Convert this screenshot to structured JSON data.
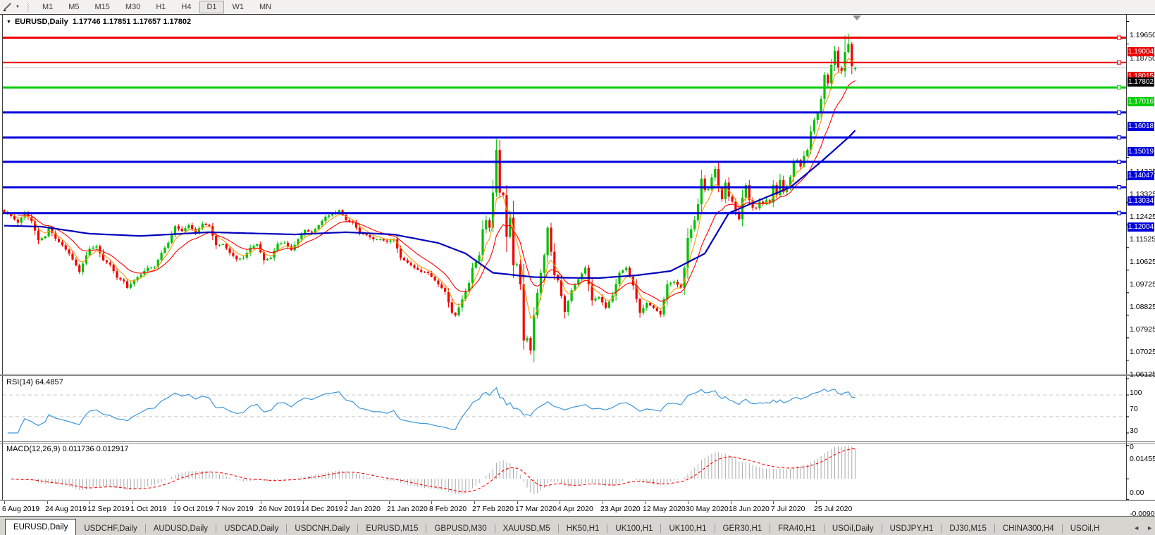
{
  "icons": {
    "caret": "▼",
    "left_arrow": "◄",
    "right_arrow": "►"
  },
  "toolbar": {
    "timeframes": [
      "M1",
      "M5",
      "M15",
      "M30",
      "H1",
      "H4",
      "D1",
      "W1",
      "MN"
    ],
    "active_timeframe": "D1"
  },
  "chart_title": {
    "symbol": "EURUSD,Daily",
    "values": "1.17746 1.17851 1.17657 1.17802",
    "open": "1.17746",
    "high": "1.17851",
    "low": "1.17657",
    "close": "1.17802"
  },
  "rsi_panel": {
    "title": "RSI(14) 64.4857"
  },
  "macd_panel": {
    "title": "MACD(12,26,9) 0.011736 0.012917"
  },
  "colors": {
    "up": "#00BE00",
    "down": "#F20000",
    "ma_fast": "#FF9900",
    "ma_mid": "#FF0000",
    "ma_slow": "#0000BB",
    "line_red": "#EE0000",
    "line_green": "#00CC00",
    "line_blue": "#0000DD",
    "current_line": "#B8B8B8",
    "current_tag_bg": "#000000",
    "rsi_line": "#3C96D9",
    "level_dash": "#C8C8C8",
    "macd_hist": "#A8A8A8",
    "macd_signal": "#FF0000",
    "border": "#404040",
    "splitter": "#808080",
    "shift_marker": "#909090"
  },
  "chart_data": {
    "type": "candlestick",
    "symbol": "EURUSD",
    "timeframe": "Daily",
    "n_candles": 250,
    "price_axis_ticks": [
      {
        "v": 1.1965,
        "label": "1.19650"
      },
      {
        "v": 1.1875,
        "label": "1.18750"
      },
      {
        "v": 1.14225,
        "label": "1.14225"
      },
      {
        "v": 1.13325,
        "label": "1.13325"
      },
      {
        "v": 1.12425,
        "label": "1.12425"
      },
      {
        "v": 1.11525,
        "label": "1.11525"
      },
      {
        "v": 1.10625,
        "label": "1.10625"
      },
      {
        "v": 1.09725,
        "label": "1.09725"
      },
      {
        "v": 1.08825,
        "label": "1.08825"
      },
      {
        "v": 1.07925,
        "label": "1.07925"
      },
      {
        "v": 1.07025,
        "label": "1.07025"
      },
      {
        "v": 1.06125,
        "label": "1.06125"
      }
    ],
    "h_lines": [
      {
        "price": 1.19004,
        "label": "1.19004",
        "color": "line_red",
        "width": 3
      },
      {
        "price": 1.18015,
        "label": "1.18015",
        "color": "line_red",
        "width": 2
      },
      {
        "price": 1.17016,
        "label": "1.17016",
        "color": "line_green",
        "width": 3
      },
      {
        "price": 1.16018,
        "label": "1.16018",
        "color": "line_blue",
        "width": 3
      },
      {
        "price": 1.15019,
        "label": "1.15019",
        "color": "line_blue",
        "width": 3
      },
      {
        "price": 1.14047,
        "label": "1.14047",
        "color": "line_blue",
        "width": 3
      },
      {
        "price": 1.13034,
        "label": "1.13034",
        "color": "line_blue",
        "width": 3
      },
      {
        "price": 1.12004,
        "label": "1.12004",
        "color": "line_blue",
        "width": 3
      }
    ],
    "current_price": {
      "v": 1.17802,
      "label": "1.17802"
    },
    "date_labels": [
      "6 Aug 2019",
      "24 Aug 2019",
      "12 Sep 2019",
      "1 Oct 2019",
      "19 Oct 2019",
      "7 Nov 2019",
      "26 Nov 2019",
      "14 Dec 2019",
      "2 Jan 2020",
      "21 Jan 2020",
      "8 Feb 2020",
      "27 Feb 2020",
      "17 Mar 2020",
      "4 Apr 2020",
      "23 Apr 2020",
      "12 May 2020",
      "30 May 2020",
      "18 Jun 2020",
      "7 Jul 2020",
      "25 Jul 2020"
    ],
    "candles_per_date_label": 12.5,
    "close_anchors": [
      [
        0,
        1.1205
      ],
      [
        2,
        1.1188
      ],
      [
        4,
        1.1162
      ],
      [
        6,
        1.1203
      ],
      [
        8,
        1.1168
      ],
      [
        10,
        1.1092
      ],
      [
        12,
        1.1108
      ],
      [
        13,
        1.1145
      ],
      [
        15,
        1.1098
      ],
      [
        17,
        1.1072
      ],
      [
        19,
        1.1038
      ],
      [
        21,
        1.0992
      ],
      [
        22,
        1.0966
      ],
      [
        24,
        1.1032
      ],
      [
        25,
        1.1058
      ],
      [
        27,
        1.1068
      ],
      [
        29,
        1.1012
      ],
      [
        31,
        1.0995
      ],
      [
        33,
        1.0942
      ],
      [
        35,
        1.0928
      ],
      [
        36,
        1.0902
      ],
      [
        38,
        1.0932
      ],
      [
        40,
        1.0956
      ],
      [
        42,
        1.0982
      ],
      [
        44,
        1.0986
      ],
      [
        46,
        1.1042
      ],
      [
        48,
        1.1082
      ],
      [
        50,
        1.1148
      ],
      [
        52,
        1.1128
      ],
      [
        54,
        1.1152
      ],
      [
        56,
        1.1122
      ],
      [
        58,
        1.1158
      ],
      [
        60,
        1.1148
      ],
      [
        62,
        1.1072
      ],
      [
        64,
        1.1076
      ],
      [
        66,
        1.1042
      ],
      [
        68,
        1.1016
      ],
      [
        70,
        1.1022
      ],
      [
        72,
        1.1062
      ],
      [
        74,
        1.1076
      ],
      [
        76,
        1.1012
      ],
      [
        78,
        1.1022
      ],
      [
        80,
        1.1078
      ],
      [
        82,
        1.1082
      ],
      [
        84,
        1.1052
      ],
      [
        86,
        1.1096
      ],
      [
        88,
        1.1132
      ],
      [
        90,
        1.1122
      ],
      [
        92,
        1.1152
      ],
      [
        94,
        1.1186
      ],
      [
        96,
        1.1196
      ],
      [
        98,
        1.1212
      ],
      [
        100,
        1.1172
      ],
      [
        102,
        1.1162
      ],
      [
        104,
        1.1122
      ],
      [
        106,
        1.1112
      ],
      [
        108,
        1.1096
      ],
      [
        110,
        1.1096
      ],
      [
        112,
        1.1086
      ],
      [
        114,
        1.1096
      ],
      [
        116,
        1.1022
      ],
      [
        118,
        1.1002
      ],
      [
        120,
        1.0982
      ],
      [
        122,
        1.0966
      ],
      [
        125,
        1.0946
      ],
      [
        127,
        1.0916
      ],
      [
        129,
        1.0886
      ],
      [
        131,
        1.0802
      ],
      [
        132,
        1.0792
      ],
      [
        134,
        1.0856
      ],
      [
        136,
        1.0922
      ],
      [
        137,
        1.0982
      ],
      [
        139,
        1.1032
      ],
      [
        140,
        1.1136
      ],
      [
        141,
        1.1172
      ],
      [
        142,
        1.1142
      ],
      [
        143,
        1.1282
      ],
      [
        144,
        1.1452
      ],
      [
        145,
        1.1282
      ],
      [
        146,
        1.1272
      ],
      [
        147,
        1.1106
      ],
      [
        148,
        1.1182
      ],
      [
        149,
        1.0992
      ],
      [
        150,
        1.0996
      ],
      [
        151,
        1.0916
      ],
      [
        152,
        1.0692
      ],
      [
        153,
        1.0702
      ],
      [
        154,
        1.0652
      ],
      [
        155,
        1.0792
      ],
      [
        156,
        1.0882
      ],
      [
        157,
        1.0962
      ],
      [
        158,
        1.1032
      ],
      [
        159,
        1.1142
      ],
      [
        160,
        1.1046
      ],
      [
        161,
        1.0952
      ],
      [
        162,
        1.0932
      ],
      [
        164,
        1.0806
      ],
      [
        166,
        1.0892
      ],
      [
        168,
        1.0936
      ],
      [
        170,
        1.0982
      ],
      [
        172,
        1.0852
      ],
      [
        174,
        1.0866
      ],
      [
        176,
        1.0822
      ],
      [
        178,
        1.0872
      ],
      [
        180,
        1.0962
      ],
      [
        182,
        1.0982
      ],
      [
        184,
        1.0912
      ],
      [
        186,
        1.0802
      ],
      [
        188,
        1.0842
      ],
      [
        190,
        1.0822
      ],
      [
        192,
        1.0796
      ],
      [
        194,
        1.0916
      ],
      [
        196,
        1.0926
      ],
      [
        198,
        1.0902
      ],
      [
        199,
        1.0982
      ],
      [
        200,
        1.1101
      ],
      [
        201,
        1.1136
      ],
      [
        202,
        1.1172
      ],
      [
        203,
        1.1236
      ],
      [
        204,
        1.1338
      ],
      [
        205,
        1.1292
      ],
      [
        206,
        1.1296
      ],
      [
        207,
        1.1342
      ],
      [
        208,
        1.1376
      ],
      [
        209,
        1.1302
      ],
      [
        210,
        1.1256
      ],
      [
        211,
        1.1322
      ],
      [
        212,
        1.1266
      ],
      [
        213,
        1.1246
      ],
      [
        214,
        1.1206
      ],
      [
        215,
        1.1176
      ],
      [
        216,
        1.1262
      ],
      [
        217,
        1.1312
      ],
      [
        218,
        1.1252
      ],
      [
        219,
        1.1222
      ],
      [
        220,
        1.1219
      ],
      [
        221,
        1.1246
      ],
      [
        222,
        1.1236
      ],
      [
        223,
        1.1252
      ],
      [
        224,
        1.1242
      ],
      [
        225,
        1.1312
      ],
      [
        226,
        1.1272
      ],
      [
        227,
        1.1332
      ],
      [
        228,
        1.1284
      ],
      [
        229,
        1.1302
      ],
      [
        230,
        1.1344
      ],
      [
        231,
        1.1402
      ],
      [
        232,
        1.1412
      ],
      [
        233,
        1.1386
      ],
      [
        234,
        1.1428
      ],
      [
        235,
        1.1452
      ],
      [
        236,
        1.1526
      ],
      [
        237,
        1.1572
      ],
      [
        238,
        1.1598
      ],
      [
        239,
        1.1656
      ],
      [
        240,
        1.1752
      ],
      [
        241,
        1.1718
      ],
      [
        242,
        1.1792
      ],
      [
        243,
        1.1848
      ],
      [
        244,
        1.1779
      ],
      [
        245,
        1.1766
      ],
      [
        246,
        1.1842
      ],
      [
        247,
        1.1875
      ],
      [
        248,
        1.1786
      ],
      [
        249,
        1.17802
      ]
    ],
    "wick_overrides": {
      "144": {
        "h": 1.1495
      },
      "152": {
        "l": 1.0656
      },
      "154": {
        "l": 1.0636
      },
      "159": {
        "h": 1.1148
      },
      "243": {
        "h": 1.1868
      },
      "246": {
        "h": 1.1909
      },
      "247": {
        "h": 1.1916
      },
      "248": {
        "h": 1.1882,
        "l": 1.1755
      }
    },
    "last_candle": {
      "o": 1.17746,
      "h": 1.17851,
      "l": 1.17657,
      "c": 1.17802
    },
    "ma": {
      "fast_period": 5,
      "mid_period": 13,
      "slow_anchors": [
        [
          0,
          1.115
        ],
        [
          11,
          1.1146
        ],
        [
          25,
          1.1118
        ],
        [
          40,
          1.1109
        ],
        [
          60,
          1.1124
        ],
        [
          85,
          1.1115
        ],
        [
          100,
          1.1124
        ],
        [
          114,
          1.1115
        ],
        [
          127,
          1.1081
        ],
        [
          135,
          1.1039
        ],
        [
          143,
          1.0962
        ],
        [
          155,
          1.0945
        ],
        [
          165,
          1.0942
        ],
        [
          174,
          1.0941
        ],
        [
          185,
          1.0952
        ],
        [
          195,
          1.0969
        ],
        [
          205,
          1.1039
        ],
        [
          212,
          1.12
        ],
        [
          222,
          1.1258
        ],
        [
          230,
          1.1303
        ],
        [
          239,
          1.1405
        ],
        [
          247,
          1.1502
        ],
        [
          249,
          1.153
        ]
      ]
    },
    "rsi": {
      "period": 14,
      "value": "64.4857",
      "levels": [
        70,
        30
      ],
      "ticks": [
        {
          "v": 100,
          "label": "100"
        },
        {
          "v": 70,
          "label": "70"
        },
        {
          "v": 30,
          "label": "30"
        },
        {
          "v": 0,
          "label": "0"
        }
      ]
    },
    "macd": {
      "fast": 12,
      "slow": 26,
      "signal": 9,
      "main_value": "0.011736",
      "signal_value": "0.012917",
      "axis_max": 0.014556,
      "axis_min": -0.009001,
      "ticks": [
        {
          "v": 0.014556,
          "label": "0.014556"
        },
        {
          "v": 0.0,
          "label": "0.00"
        },
        {
          "v": -0.009001,
          "label": "-0.009001"
        }
      ]
    }
  },
  "tabs": {
    "active_index": 0,
    "items": [
      "EURUSD,Daily",
      "USDCHF,Daily",
      "AUDUSD,Daily",
      "USDCAD,Daily",
      "USDCNH,Daily",
      "EURUSD,M15",
      "GBPUSD,M30",
      "XAUUSD,M5",
      "HK50,H1",
      "UK100,H1",
      "UK100,H1",
      "GER30,H1",
      "FRA40,H1",
      "USOil,Daily",
      "USDJPY,H1",
      "DJ30,M15",
      "CHINA300,H4",
      "USOil,H"
    ]
  }
}
